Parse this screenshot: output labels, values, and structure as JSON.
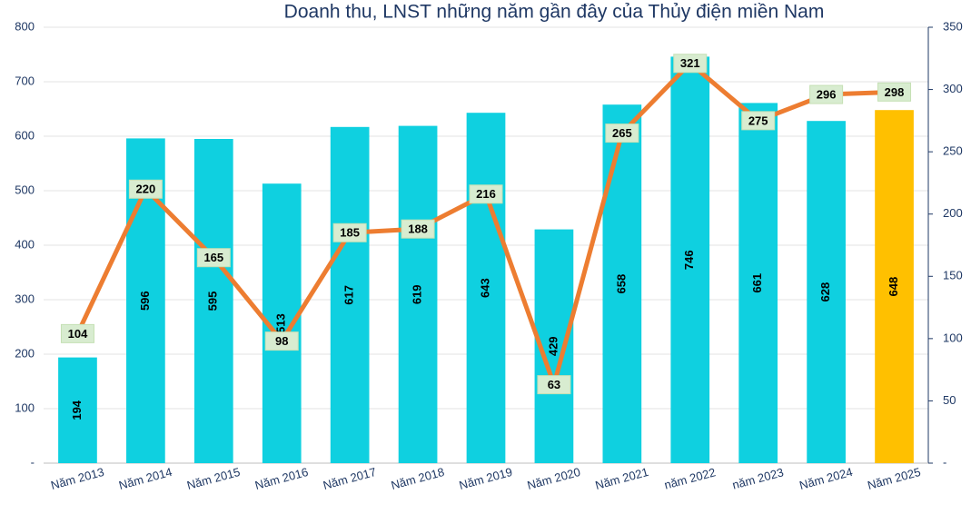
{
  "chart_data": {
    "type": "combo",
    "title": "Doanh thu, LNST những năm gần đây của Thủy điện miền Nam",
    "categories": [
      "Năm 2013",
      "Năm 2014",
      "Năm 2015",
      "Năm 2016",
      "Năm 2017",
      "Năm 2018",
      "Năm 2019",
      "Năm 2020",
      "Năm 2021",
      "năm 2022",
      "năm 2023",
      "Năm 2024",
      "Năm 2025"
    ],
    "series": [
      {
        "type": "bar",
        "axis": "y",
        "values": [
          194,
          596,
          595,
          513,
          617,
          619,
          643,
          429,
          658,
          746,
          661,
          628,
          648
        ],
        "colors": [
          "#0fd0e0",
          "#0fd0e0",
          "#0fd0e0",
          "#0fd0e0",
          "#0fd0e0",
          "#0fd0e0",
          "#0fd0e0",
          "#0fd0e0",
          "#0fd0e0",
          "#0fd0e0",
          "#0fd0e0",
          "#0fd0e0",
          "#ffc000"
        ]
      },
      {
        "type": "line",
        "axis": "y2",
        "color": "#ed7d31",
        "values": [
          104,
          220,
          165,
          98,
          185,
          188,
          216,
          63,
          265,
          321,
          275,
          296,
          298
        ]
      }
    ],
    "ylim": [
      0,
      800
    ],
    "yticks": [
      {
        "value": 0,
        "label": "-"
      },
      100,
      200,
      300,
      400,
      500,
      600,
      700,
      800
    ],
    "y2lim": [
      0,
      350
    ],
    "y2ticks": [
      {
        "value": 0,
        "label": "-"
      },
      50,
      100,
      150,
      200,
      250,
      300,
      350
    ],
    "grid": true
  }
}
